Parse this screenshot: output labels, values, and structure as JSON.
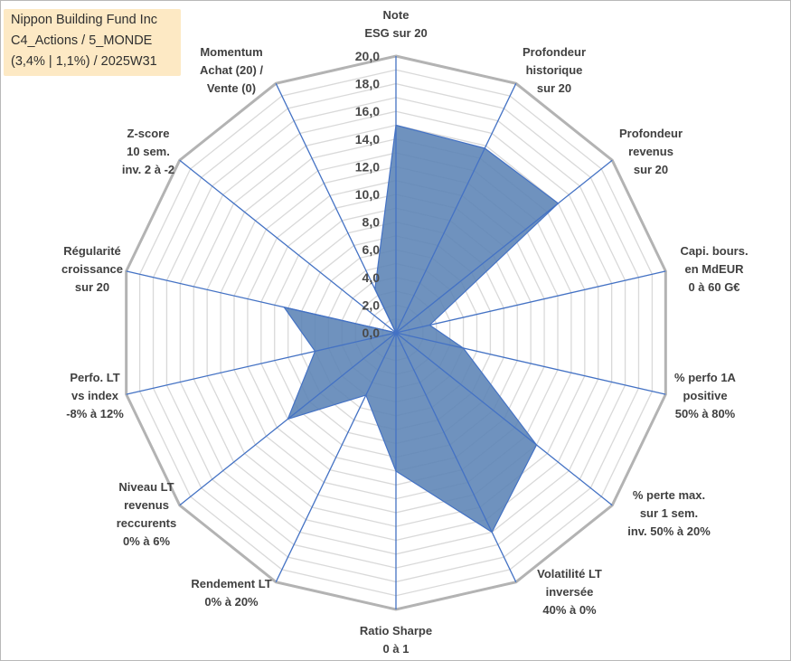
{
  "title": {
    "lines": [
      "Nippon Building Fund Inc",
      "C4_Actions / 5_MONDE",
      "(3,4% | 1,1%) / 2025W31"
    ]
  },
  "chart_data": {
    "type": "radar",
    "title": "Nippon Building Fund Inc C4_Actions / 5_MONDE (3,4% | 1,1%) / 2025W31",
    "rmin": 0,
    "rmax": 20,
    "tick_labels": [
      "0,0",
      "2,0",
      "4,0",
      "6,0",
      "8,0",
      "10,0",
      "12,0",
      "14,0",
      "16,0",
      "18,0",
      "20,0"
    ],
    "grid": true,
    "legend": "none",
    "axes": [
      {
        "label": [
          "Note",
          "ESG sur 20"
        ]
      },
      {
        "label": [
          "Profondeur",
          "historique",
          "sur 20"
        ]
      },
      {
        "label": [
          "Profondeur",
          "revenus",
          "sur 20"
        ]
      },
      {
        "label": [
          "Capi. bours.",
          "en MdEUR",
          "0 à 60 G€"
        ]
      },
      {
        "label": [
          "% perfo 1A",
          "positive",
          "50% à 80%"
        ]
      },
      {
        "label": [
          "% perte max.",
          "sur 1 sem.",
          "inv. 50% à 20%"
        ]
      },
      {
        "label": [
          "Volatilité LT",
          "inversée",
          "40% à 0%"
        ]
      },
      {
        "label": [
          "Ratio Sharpe",
          "0 à 1"
        ]
      },
      {
        "label": [
          "Rendement LT",
          "0% à 20%"
        ]
      },
      {
        "label": [
          "Niveau LT",
          "revenus",
          "reccurents",
          "0% à 6%"
        ]
      },
      {
        "label": [
          "Perfo. LT",
          "vs index",
          "-8% à 12%"
        ]
      },
      {
        "label": [
          "Régularité",
          "croissance",
          "sur 20"
        ]
      },
      {
        "label": [
          "Z-score",
          "10 sem.",
          "inv. 2 à -2"
        ]
      },
      {
        "label": [
          "Momentum",
          "Achat (20) /",
          "Vente (0)"
        ]
      }
    ],
    "series": [
      {
        "values": [
          15.0,
          14.8,
          15.0,
          2.5,
          5.0,
          13.0,
          16.0,
          10.0,
          5.0,
          10.0,
          6.0,
          8.3,
          0.0,
          3.5
        ]
      }
    ],
    "colors": {
      "fill": "#5b83b5",
      "stroke": "#4472c4",
      "spoke": "#4472c4",
      "grid": "#d9d9d9",
      "outer": "#b3b3b3"
    }
  }
}
